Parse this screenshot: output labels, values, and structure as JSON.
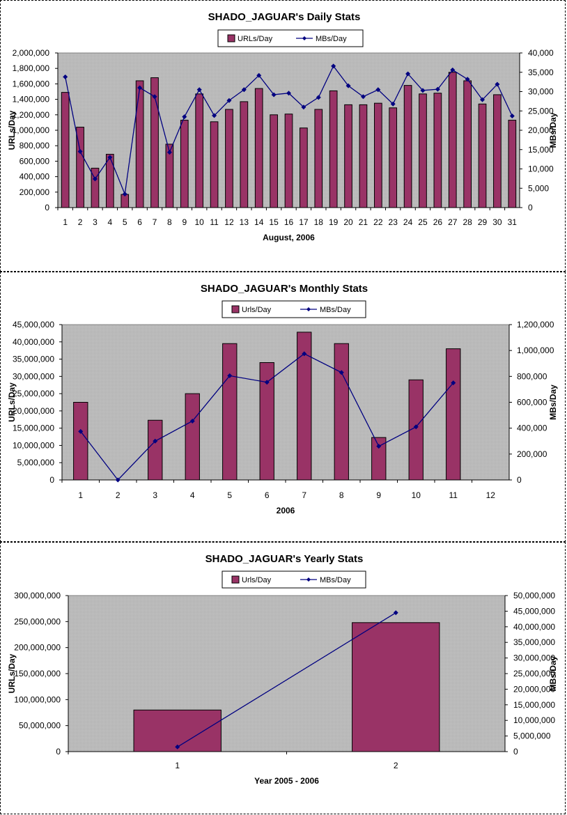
{
  "colors": {
    "bar": "#993366",
    "line": "#000080",
    "plot_bg": "#c0c0c0"
  },
  "chart_data": [
    {
      "type": "bar+line",
      "title": "SHADO_JAGUAR's Daily Stats",
      "xlabel": "August, 2006",
      "ylabel": "URLs/Day",
      "y2label": "MBs/Day",
      "legend": [
        "URLs/Day",
        "MBs/Day"
      ],
      "legend_position": "top",
      "grid": false,
      "categories": [
        "1",
        "2",
        "3",
        "4",
        "5",
        "6",
        "7",
        "8",
        "9",
        "10",
        "11",
        "12",
        "13",
        "14",
        "15",
        "16",
        "17",
        "18",
        "19",
        "20",
        "21",
        "22",
        "23",
        "24",
        "25",
        "26",
        "27",
        "28",
        "29",
        "30",
        "31"
      ],
      "ylim": [
        0,
        2000000
      ],
      "y2lim": [
        0,
        40000
      ],
      "yticks": [
        "0",
        "200,000",
        "400,000",
        "600,000",
        "800,000",
        "1,000,000",
        "1,200,000",
        "1,400,000",
        "1,600,000",
        "1,800,000",
        "2,000,000"
      ],
      "y2ticks": [
        "0",
        "5,000",
        "10,000",
        "15,000",
        "20,000",
        "25,000",
        "30,000",
        "35,000",
        "40,000"
      ],
      "series": [
        {
          "name": "URLs/Day",
          "kind": "bar",
          "values": [
            1490000,
            1040000,
            510000,
            690000,
            170000,
            1640000,
            1680000,
            820000,
            1130000,
            1470000,
            1110000,
            1270000,
            1370000,
            1540000,
            1200000,
            1210000,
            1030000,
            1270000,
            1510000,
            1330000,
            1330000,
            1350000,
            1290000,
            1580000,
            1470000,
            1480000,
            1750000,
            1640000,
            1340000,
            1460000,
            1130000
          ]
        },
        {
          "name": "MBs/Day",
          "kind": "line",
          "values": [
            33800,
            14500,
            7400,
            13000,
            3500,
            31000,
            28700,
            14300,
            23500,
            30500,
            23800,
            27700,
            30500,
            34200,
            29200,
            29600,
            26000,
            28500,
            36600,
            31500,
            28700,
            30500,
            26800,
            34600,
            30300,
            30600,
            35600,
            33200,
            27900,
            31900,
            23700
          ]
        }
      ]
    },
    {
      "type": "bar+line",
      "title": "SHADO_JAGUAR's Monthly Stats",
      "xlabel": "2006",
      "ylabel": "URLs/Day",
      "y2label": "MBs/Day",
      "legend": [
        "Urls/Day",
        "MBs/Day"
      ],
      "legend_position": "top",
      "grid": false,
      "categories": [
        "1",
        "2",
        "3",
        "4",
        "5",
        "6",
        "7",
        "8",
        "9",
        "10",
        "11",
        "12"
      ],
      "ylim": [
        0,
        45000000
      ],
      "y2lim": [
        0,
        1200000
      ],
      "yticks": [
        "0",
        "5,000,000",
        "10,000,000",
        "15,000,000",
        "20,000,000",
        "25,000,000",
        "30,000,000",
        "35,000,000",
        "40,000,000",
        "45,000,000"
      ],
      "y2ticks": [
        "0",
        "200,000",
        "400,000",
        "600,000",
        "800,000",
        "1,000,000",
        "1,200,000"
      ],
      "series": [
        {
          "name": "Urls/Day",
          "kind": "bar",
          "values": [
            22500000,
            null,
            17300000,
            25000000,
            39500000,
            34000000,
            42800000,
            39500000,
            12300000,
            29000000,
            38000000,
            null
          ]
        },
        {
          "name": "MBs/Day",
          "kind": "line",
          "values": [
            375000,
            0,
            300000,
            455000,
            805000,
            755000,
            975000,
            830000,
            260000,
            410000,
            750000,
            null
          ]
        }
      ]
    },
    {
      "type": "bar+line",
      "title": "SHADO_JAGUAR's Yearly Stats",
      "xlabel": "Year 2005 - 2006",
      "ylabel": "URLs/Day",
      "y2label": "MBs/Day",
      "legend": [
        "Urls/Day",
        "MBs/Day"
      ],
      "legend_position": "top",
      "grid": false,
      "categories": [
        "1",
        "2"
      ],
      "ylim": [
        0,
        300000000
      ],
      "y2lim": [
        0,
        50000000
      ],
      "yticks": [
        "0",
        "50,000,000",
        "100,000,000",
        "150,000,000",
        "200,000,000",
        "250,000,000",
        "300,000,000"
      ],
      "y2ticks": [
        "0",
        "5,000,000",
        "10,000,000",
        "15,000,000",
        "20,000,000",
        "25,000,000",
        "30,000,000",
        "35,000,000",
        "40,000,000",
        "45,000,000",
        "50,000,000"
      ],
      "series": [
        {
          "name": "Urls/Day",
          "kind": "bar",
          "values": [
            80000000,
            248000000
          ]
        },
        {
          "name": "MBs/Day",
          "kind": "line",
          "values": [
            1500000,
            44500000
          ]
        }
      ]
    }
  ]
}
